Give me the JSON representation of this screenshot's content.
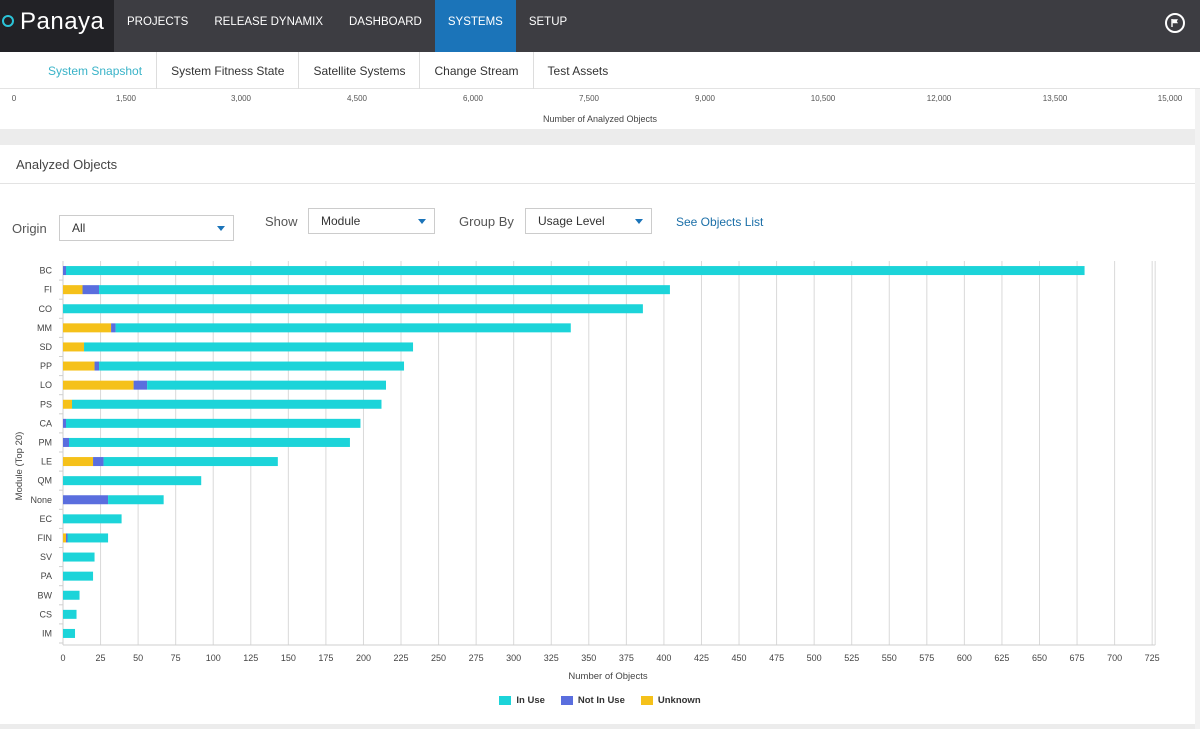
{
  "app": {
    "logo": "Panaya"
  },
  "nav": [
    {
      "label": "PROJECTS",
      "active": false
    },
    {
      "label": "RELEASE DYNAMIX",
      "active": false
    },
    {
      "label": "DASHBOARD",
      "active": false
    },
    {
      "label": "SYSTEMS",
      "active": true
    },
    {
      "label": "SETUP",
      "active": false
    }
  ],
  "subnav": [
    {
      "label": "System Snapshot",
      "active": true
    },
    {
      "label": "System Fitness State",
      "active": false
    },
    {
      "label": "Satellite Systems",
      "active": false
    },
    {
      "label": "Change Stream",
      "active": false
    },
    {
      "label": "Test Assets",
      "active": false
    }
  ],
  "top_axis": {
    "ticks": [
      "0",
      "1,500",
      "3,000",
      "4,500",
      "6,000",
      "7,500",
      "9,000",
      "10,500",
      "12,000",
      "13,500",
      "15,000"
    ],
    "label": "Number of Analyzed Objects"
  },
  "panel": {
    "title": "Analyzed Objects",
    "origin_label": "Origin",
    "origin_value": "All",
    "show_label": "Show",
    "show_value": "Module",
    "groupby_label": "Group By",
    "groupby_value": "Usage Level",
    "objects_link": "See Objects List"
  },
  "colors": {
    "in_use": "#1cd4d9",
    "not_in_use": "#5a6ede",
    "unknown": "#f5c11a",
    "grid": "#d9d9d9"
  },
  "chart_data": {
    "type": "bar",
    "orientation": "horizontal",
    "stacked": true,
    "categories": [
      "BC",
      "FI",
      "CO",
      "MM",
      "SD",
      "PP",
      "LO",
      "PS",
      "CA",
      "PM",
      "LE",
      "QM",
      "None",
      "EC",
      "FIN",
      "SV",
      "PA",
      "BW",
      "CS",
      "IM"
    ],
    "series": [
      {
        "name": "Unknown",
        "values": [
          0,
          13,
          0,
          32,
          14,
          21,
          47,
          6,
          0,
          0,
          20,
          0,
          0,
          0,
          2,
          0,
          0,
          0,
          0,
          0
        ]
      },
      {
        "name": "Not In Use",
        "values": [
          2,
          11,
          0,
          3,
          0,
          3,
          9,
          0,
          2,
          4,
          7,
          0,
          30,
          0,
          1,
          0,
          0,
          0,
          0,
          0
        ]
      },
      {
        "name": "In Use",
        "values": [
          678,
          380,
          386,
          303,
          219,
          203,
          159,
          206,
          196,
          187,
          116,
          92,
          37,
          39,
          27,
          21,
          20,
          11,
          9,
          8
        ]
      }
    ],
    "xlabel": "Number of Objects",
    "ylabel": "Module (Top 20)",
    "xticks": [
      0,
      25,
      50,
      75,
      100,
      125,
      150,
      175,
      200,
      225,
      250,
      275,
      300,
      325,
      350,
      375,
      400,
      425,
      450,
      475,
      500,
      525,
      550,
      575,
      600,
      625,
      650,
      675,
      700,
      725
    ],
    "xlim": [
      0,
      725
    ],
    "grid": true,
    "legend": [
      "In Use",
      "Not In Use",
      "Unknown"
    ],
    "legend_position": "bottom"
  }
}
